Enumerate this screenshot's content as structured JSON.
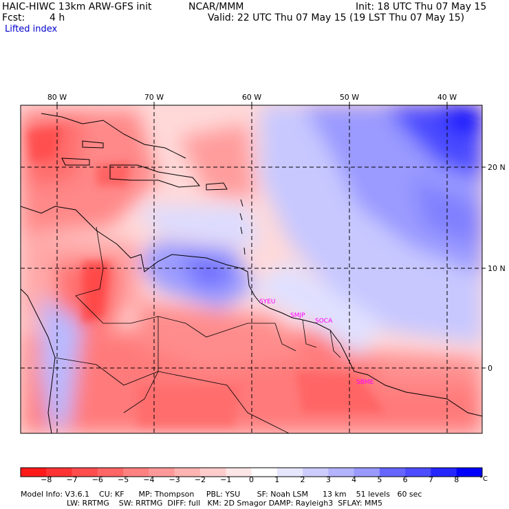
{
  "header": {
    "model_line": "HAIC-HIWC 13km ARW-GFS init",
    "org": "NCAR/MMM",
    "init": "Init: 18 UTC Thu 07 May 15",
    "fcst_label": "Fcst:",
    "fcst_value": "4 h",
    "valid": "Valid: 22 UTC Thu 07 May 15 (19 LST Thu 07 May 15)",
    "field": "Lifted index"
  },
  "map": {
    "lon_labels": [
      "80 W",
      "70 W",
      "60 W",
      "50 W",
      "40 W"
    ],
    "lat_labels": [
      "20 N",
      "10 N",
      "0"
    ],
    "stations": [
      {
        "code": "SYEU"
      },
      {
        "code": "SMJP"
      },
      {
        "code": "SOCA"
      },
      {
        "code": "SBME"
      }
    ]
  },
  "colorbar": {
    "labels": [
      "−8",
      "−7",
      "−6",
      "−5",
      "−4",
      "−3",
      "−2",
      "−1",
      "0",
      "1",
      "2",
      "3",
      "4",
      "5",
      "6",
      "7",
      "8"
    ],
    "unit": "°C",
    "colors": [
      "#ff1a1a",
      "#ff3333",
      "#ff4d4d",
      "#ff6666",
      "#ff8080",
      "#ff9999",
      "#ffb3b3",
      "#ffcccc",
      "#ffe6e6",
      "#ffffff",
      "#e6e6ff",
      "#ccccff",
      "#b3b3ff",
      "#9999ff",
      "#6666ff",
      "#4d4dff",
      "#2626ff",
      "#0000ff"
    ]
  },
  "footer": {
    "line1": "Model Info: V3.6.1    CU: KF      MP: Thompson     PBL: YSU       SF: Noah LSM      13 km    51 levels   60 sec",
    "line2": "LW: RRTMG    SW: RRTMG  DIFF: full   KM: 2D Smagor DAMP: Rayleigh3  SFLAY: MM5"
  }
}
